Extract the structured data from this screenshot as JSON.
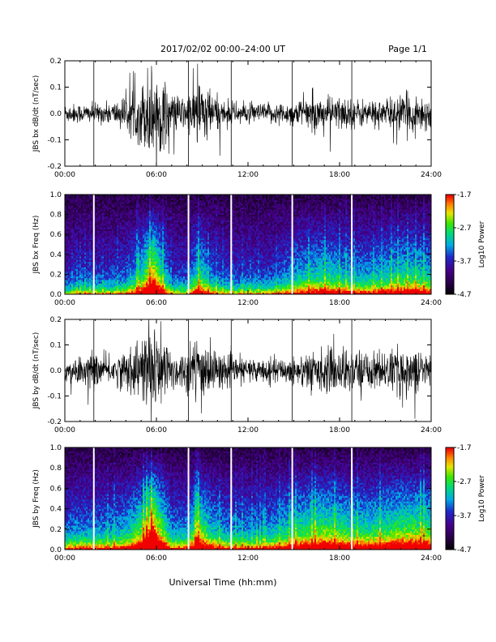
{
  "header": {
    "title": "2017/02/02  00:00–24:00 UT",
    "page": "Page 1/1"
  },
  "xaxis_title": "Universal Time (hh:mm)",
  "chart_data": [
    {
      "type": "line",
      "ylabel": "JBS bx dB/dt (nT/sec)",
      "xlim": [
        0,
        24
      ],
      "ylim": [
        -0.2,
        0.2
      ],
      "xticks": [
        "00:00",
        "06:00",
        "12:00",
        "18:00",
        "24:00"
      ],
      "yticks": [
        "-0.2",
        "-0.1",
        "0.0",
        "0.1",
        "0.2"
      ],
      "gap_hours": [
        1.9,
        8.1,
        10.9,
        14.9,
        18.8
      ],
      "envelope_hours": [
        0,
        1,
        2,
        3,
        4,
        5,
        5.5,
        5.9,
        6.3,
        7,
        8,
        8.7,
        9.1,
        9.6,
        10.5,
        12,
        13,
        14,
        15,
        16,
        17,
        18,
        19,
        20,
        21,
        22,
        23,
        24
      ],
      "envelope_amplitude": [
        0.04,
        0.04,
        0.04,
        0.045,
        0.07,
        0.12,
        0.2,
        0.2,
        0.16,
        0.08,
        0.07,
        0.15,
        0.14,
        0.09,
        0.05,
        0.04,
        0.04,
        0.045,
        0.05,
        0.065,
        0.07,
        0.07,
        0.06,
        0.055,
        0.06,
        0.075,
        0.08,
        0.07
      ]
    },
    {
      "type": "heatmap",
      "ylabel": "JBS bx Freq (Hz)",
      "colorbar_label": "Log10 Power",
      "colorbar_ticks": [
        "-1.7",
        "-2.7",
        "-3.7",
        "-4.7"
      ],
      "zlim": [
        -4.7,
        -1.7
      ],
      "xlim": [
        0,
        24
      ],
      "ylim": [
        0,
        1.0
      ],
      "xticks": [
        "00:00",
        "06:00",
        "12:00",
        "18:00",
        "24:00"
      ],
      "yticks": [
        "0.0",
        "0.2",
        "0.4",
        "0.6",
        "0.8",
        "1.0"
      ],
      "gap_hours": [
        1.9,
        8.1,
        10.9,
        14.9,
        18.8
      ]
    },
    {
      "type": "line",
      "ylabel": "JBS by dB/dt (nT/sec)",
      "xlim": [
        0,
        24
      ],
      "ylim": [
        -0.2,
        0.2
      ],
      "xticks": [
        "00:00",
        "06:00",
        "12:00",
        "18:00",
        "24:00"
      ],
      "yticks": [
        "-0.2",
        "-0.1",
        "0.0",
        "0.1",
        "0.2"
      ],
      "gap_hours": [
        1.9,
        8.1,
        10.9,
        14.9,
        18.8
      ],
      "envelope_hours": [
        0,
        1,
        2,
        3,
        4,
        5,
        5.5,
        5.9,
        6.3,
        7,
        8,
        8.7,
        9.1,
        9.6,
        10.5,
        12,
        13,
        14,
        15,
        16,
        17,
        18,
        19,
        20,
        21,
        22,
        23,
        24
      ],
      "envelope_amplitude": [
        0.05,
        0.06,
        0.07,
        0.06,
        0.08,
        0.14,
        0.2,
        0.2,
        0.17,
        0.09,
        0.08,
        0.16,
        0.15,
        0.1,
        0.06,
        0.05,
        0.05,
        0.05,
        0.06,
        0.08,
        0.09,
        0.1,
        0.09,
        0.08,
        0.08,
        0.1,
        0.09,
        0.08
      ]
    },
    {
      "type": "heatmap",
      "ylabel": "JBS by Freq (Hz)",
      "colorbar_label": "Log10 Power",
      "colorbar_ticks": [
        "-1.7",
        "-2.7",
        "-3.7",
        "-4.7"
      ],
      "zlim": [
        -4.7,
        -1.7
      ],
      "xlim": [
        0,
        24
      ],
      "ylim": [
        0,
        1.0
      ],
      "xticks": [
        "00:00",
        "06:00",
        "12:00",
        "18:00",
        "24:00"
      ],
      "yticks": [
        "0.0",
        "0.2",
        "0.4",
        "0.6",
        "0.8",
        "1.0"
      ],
      "gap_hours": [
        1.9,
        8.1,
        10.9,
        14.9,
        18.8
      ]
    }
  ]
}
